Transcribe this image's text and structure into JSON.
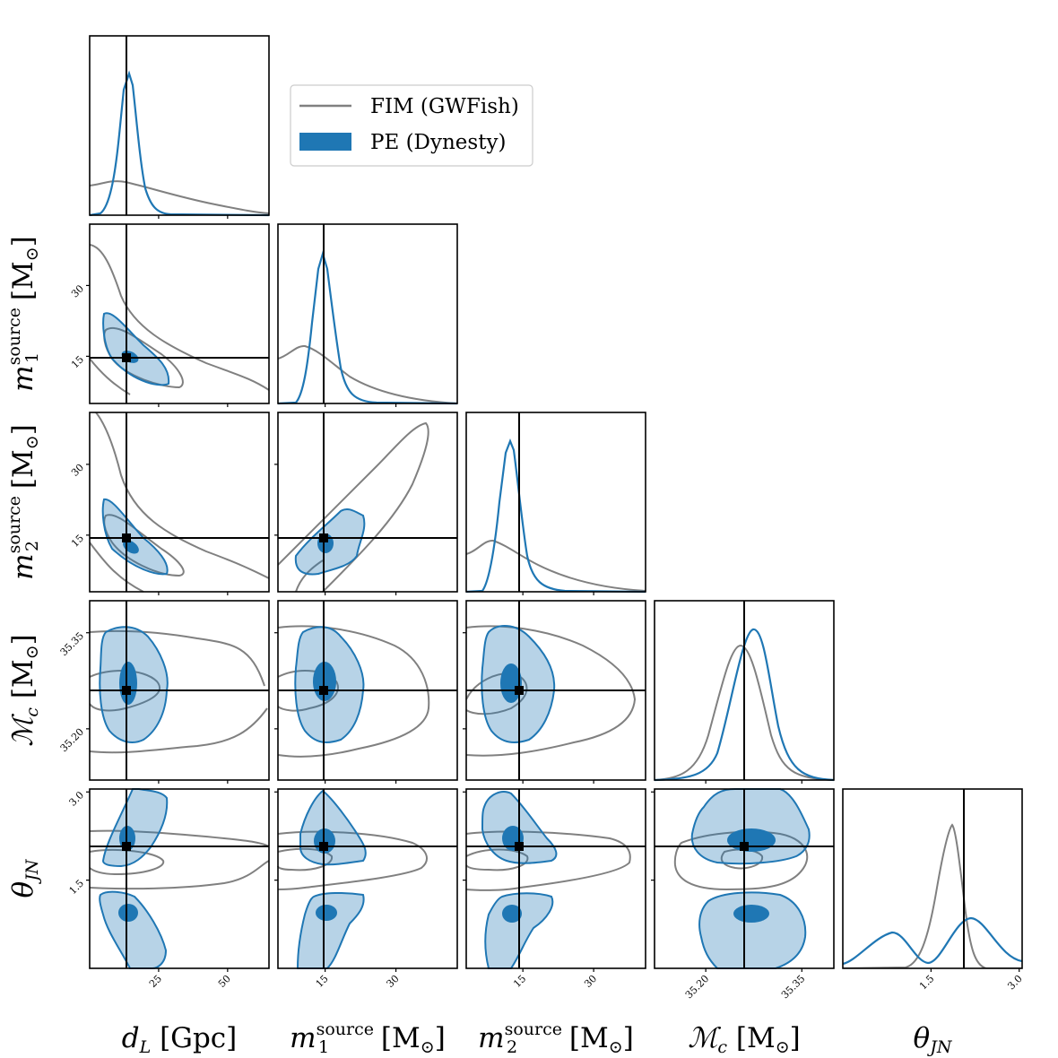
{
  "chart_data": {
    "type": "corner",
    "parameters": [
      {
        "key": "dL",
        "label": "d_L [Gpc]",
        "range": [
          0,
          65
        ],
        "truth": 13.5,
        "ticks": [
          "25",
          "50"
        ],
        "tick_values": [
          25,
          50
        ]
      },
      {
        "key": "m1",
        "label": "m_1^source [M_⊙]",
        "range": [
          5,
          43
        ],
        "truth": 14.6,
        "ticks": [
          "15",
          "30"
        ],
        "tick_values": [
          15,
          30
        ]
      },
      {
        "key": "m2",
        "label": "m_2^source [M_⊙]",
        "range": [
          3,
          41
        ],
        "truth": 13,
        "ticks": [
          "15",
          "30"
        ],
        "tick_values": [
          15,
          30
        ]
      },
      {
        "key": "Mc",
        "label": "M_c [M_⊙]",
        "range": [
          35.12,
          35.4
        ],
        "truth": 35.272,
        "ticks": [
          "35.20",
          "35.35"
        ],
        "tick_values": [
          35.2,
          35.35
        ]
      },
      {
        "key": "thetaJN",
        "label": "θ_JN",
        "range": [
          0,
          3.05
        ],
        "truth": 2.05,
        "ticks": [
          "1.5",
          "3.0"
        ],
        "tick_values": [
          1.5,
          3.0
        ]
      }
    ],
    "series": [
      {
        "name": "FIM (GWFish)",
        "color": "#808080",
        "style": "line"
      },
      {
        "name": "PE (Dynesty)",
        "color": "#1f77b4",
        "style": "filled"
      }
    ],
    "legend": {
      "placement": "top-right of first column",
      "entries": [
        "FIM (GWFish)",
        "PE (Dynesty)"
      ]
    },
    "axis_labels": {
      "dL": {
        "main": "d",
        "sub": "L",
        "unit": " [Gpc]"
      },
      "m1": {
        "main": "m",
        "sub": "1",
        "sup": "source",
        "unit": " [M",
        "unit_sub": "⊙",
        "unit_close": "]"
      },
      "m2": {
        "main": "m",
        "sub": "2",
        "sup": "source",
        "unit": " [M",
        "unit_sub": "⊙",
        "unit_close": "]"
      },
      "Mc": {
        "main": "ℳ",
        "sub": "c",
        "unit": " [M",
        "unit_sub": "⊙",
        "unit_close": "]"
      },
      "thetaJN": {
        "main": "θ",
        "sub": "JN"
      }
    }
  }
}
